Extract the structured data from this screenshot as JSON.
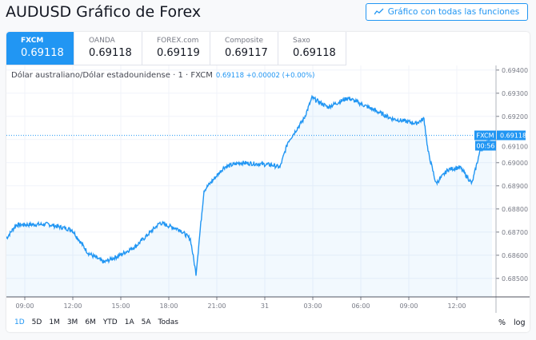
{
  "header": {
    "title": "AUDUSD Gráfico de Forex",
    "full_chart_button": "Gráfico con todas las funciones",
    "full_chart_icon": "chart-icon"
  },
  "tabs": [
    {
      "name": "FXCM",
      "value": "0.69118",
      "active": true
    },
    {
      "name": "OANDA",
      "value": "0.69118"
    },
    {
      "name": "FOREX.com",
      "value": "0.69119"
    },
    {
      "name": "Composite",
      "value": "0.69117"
    },
    {
      "name": "Saxo",
      "value": "0.69118"
    }
  ],
  "legend": {
    "symbol": "Dólar australiano/Dólar estadounidense · 1 · FXCM",
    "quote": "0.69118 +0.00002 (+0.00%)"
  },
  "price_label": {
    "source": "FXCM",
    "price": "0.69118",
    "countdown": "00:56"
  },
  "ranges": [
    "1D",
    "5D",
    "1M",
    "3M",
    "6M",
    "YTD",
    "1A",
    "5A",
    "Todas"
  ],
  "scale_buttons": {
    "percent": "%",
    "log": "log"
  },
  "colors": {
    "accent": "#2196f3",
    "line": "#2196f3"
  },
  "chart_data": {
    "type": "area",
    "y_ticks": [
      "0.69400",
      "0.69300",
      "0.69200",
      "0.69100",
      "0.69000",
      "0.68900",
      "0.68800",
      "0.68700",
      "0.68600",
      "0.68500"
    ],
    "ylim": [
      0.6842,
      0.6942
    ],
    "x_ticks": [
      {
        "label": "09:00",
        "h": 0
      },
      {
        "label": "12:00",
        "h": 3
      },
      {
        "label": "15:00",
        "h": 6
      },
      {
        "label": "18:00",
        "h": 9
      },
      {
        "label": "21:00",
        "h": 12
      },
      {
        "label": "31",
        "h": 15
      },
      {
        "label": "03:00",
        "h": 18
      },
      {
        "label": "06:00",
        "h": 21
      },
      {
        "label": "09:00",
        "h": 24
      },
      {
        "label": "12:00",
        "h": 27
      }
    ],
    "xlim": [
      -1.15,
      29.45
    ],
    "series": [
      [
        -1.15,
        0.68673
      ],
      [
        -0.55,
        0.68731
      ],
      [
        1.45,
        0.68734
      ],
      [
        2.95,
        0.6871
      ],
      [
        3.95,
        0.6861
      ],
      [
        4.95,
        0.6857
      ],
      [
        5.95,
        0.686
      ],
      [
        6.95,
        0.6864
      ],
      [
        8.45,
        0.6874
      ],
      [
        9.7,
        0.6871
      ],
      [
        10.35,
        0.6867
      ],
      [
        10.7,
        0.6852
      ],
      [
        11.2,
        0.6888
      ],
      [
        11.7,
        0.6892
      ],
      [
        12.45,
        0.6898
      ],
      [
        13.45,
        0.69
      ],
      [
        15.45,
        0.6899
      ],
      [
        15.95,
        0.6898
      ],
      [
        16.45,
        0.6909
      ],
      [
        17.45,
        0.6919
      ],
      [
        17.95,
        0.6928
      ],
      [
        18.95,
        0.6924
      ],
      [
        20.2,
        0.6928
      ],
      [
        21.45,
        0.6924
      ],
      [
        22.95,
        0.6919
      ],
      [
        24.45,
        0.6917
      ],
      [
        24.95,
        0.6919
      ],
      [
        25.2,
        0.6905
      ],
      [
        25.7,
        0.6891
      ],
      [
        26.45,
        0.6897
      ],
      [
        27.2,
        0.6898
      ],
      [
        27.95,
        0.6891
      ],
      [
        28.45,
        0.6905
      ],
      [
        29.2,
        0.69118
      ]
    ]
  }
}
